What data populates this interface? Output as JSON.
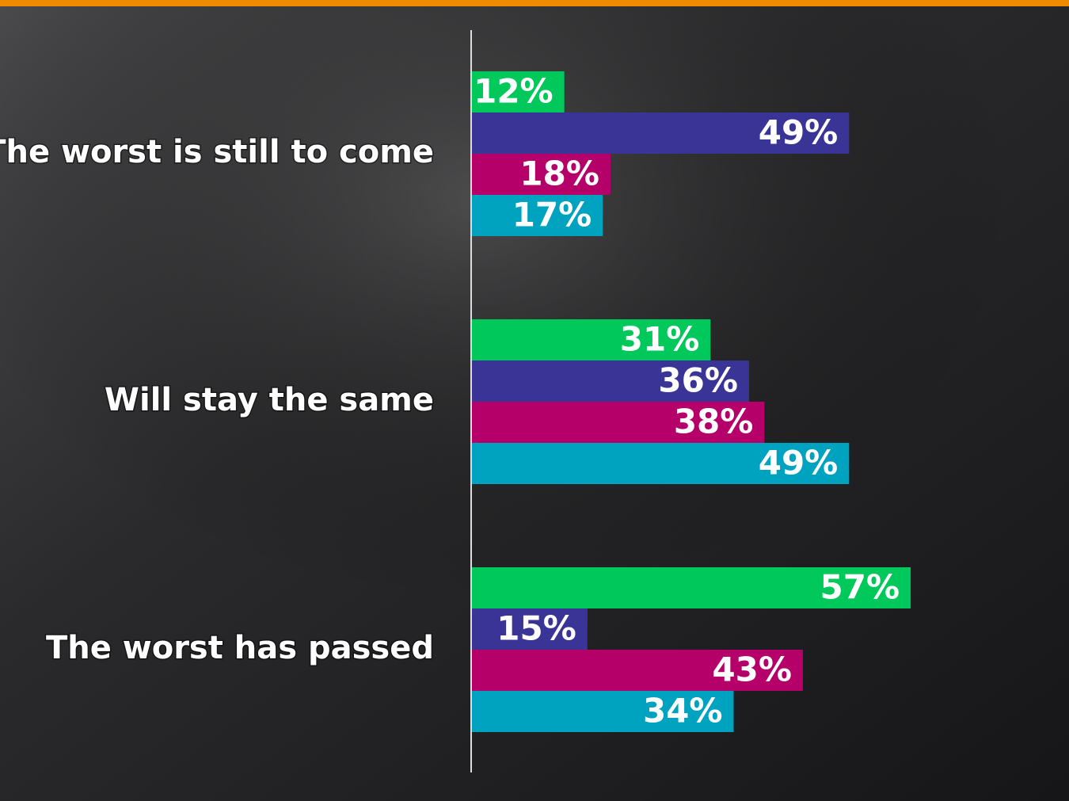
{
  "chart_data": {
    "type": "bar",
    "orientation": "horizontal",
    "categories": [
      "The worst is still to come",
      "Will stay the same",
      "The worst has passed"
    ],
    "series": [
      {
        "color": "#00c85a",
        "values": [
          12,
          31,
          57
        ],
        "value_labels": [
          "12%",
          "31%",
          "57%"
        ]
      },
      {
        "color": "#3a3496",
        "values": [
          49,
          36,
          15
        ],
        "value_labels": [
          "49%",
          "36%",
          "15%"
        ]
      },
      {
        "color": "#b5006a",
        "values": [
          18,
          38,
          43
        ],
        "value_labels": [
          "18%",
          "38%",
          "43%"
        ]
      },
      {
        "color": "#00a3bf",
        "values": [
          17,
          49,
          34
        ],
        "value_labels": [
          "17%",
          "49%",
          "34%"
        ]
      }
    ]
  }
}
